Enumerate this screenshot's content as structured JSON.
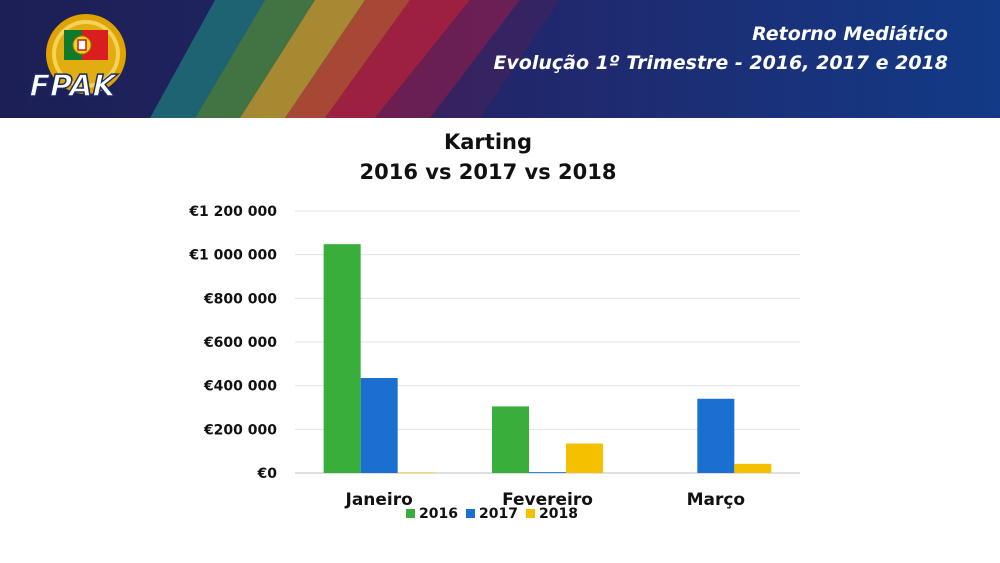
{
  "header": {
    "title_line1": "Retorno Mediático",
    "title_line2": "Evolução 1º Trimestre - 2016, 2017 e 2018",
    "logo_text": "FPAK"
  },
  "colors": {
    "banner_dark": "#1a2a6b",
    "banner_right": "#15337d",
    "series_2016": "#3aae3a",
    "series_2017": "#1a6fd0",
    "series_2018": "#f5c000"
  },
  "chart_data": {
    "type": "bar",
    "title_lines": [
      "Karting",
      "2016 vs 2017 vs 2018"
    ],
    "categories": [
      "Janeiro",
      "Fevereiro",
      "Março"
    ],
    "series": [
      {
        "name": "2016",
        "color": "#3aae3a",
        "values": [
          1048000,
          305000,
          0
        ]
      },
      {
        "name": "2017",
        "color": "#1a6fd0",
        "values": [
          435000,
          4000,
          340000
        ]
      },
      {
        "name": "2018",
        "color": "#f5c000",
        "values": [
          3000,
          135000,
          42000
        ]
      }
    ],
    "ylim": [
      0,
      1200000
    ],
    "yticks": [
      0,
      200000,
      400000,
      600000,
      800000,
      1000000,
      1200000
    ],
    "ytick_labels": [
      "€0",
      "€200 000",
      "€400 000",
      "€600 000",
      "€800 000",
      "€1 000 000",
      "€1 200 000"
    ],
    "grid": true,
    "legend_position": "bottom"
  }
}
